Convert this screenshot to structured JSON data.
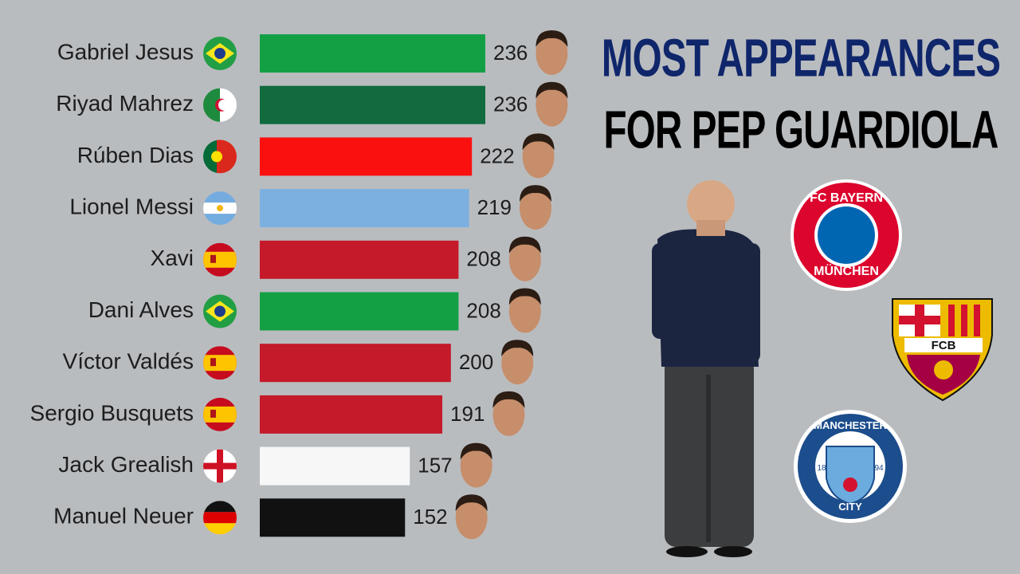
{
  "chart_data": {
    "type": "bar",
    "orientation": "horizontal",
    "title": "MOST APPEARANCES",
    "subtitle": "FOR PEP GUARDIOLA",
    "categories": [
      "Gabriel Jesus",
      "Riyad Mahrez",
      "Rúben Dias",
      "Lionel Messi",
      "Xavi",
      "Dani Alves",
      "Víctor Valdés",
      "Sergio Busquets",
      "Jack Grealish",
      "Manuel Neuer"
    ],
    "values": [
      236,
      236,
      222,
      219,
      208,
      208,
      200,
      191,
      157,
      152
    ],
    "colors": [
      "#13a045",
      "#116b3e",
      "#fb1010",
      "#7bb0e0",
      "#c41a2a",
      "#13a045",
      "#c41a2a",
      "#c41a2a",
      "#f7f7f7",
      "#111111"
    ],
    "annotations": [
      "FC BAYERN",
      "MÜNCHEN",
      "FCB",
      "MANCHESTER",
      "CITY",
      "18",
      "94"
    ]
  }
}
